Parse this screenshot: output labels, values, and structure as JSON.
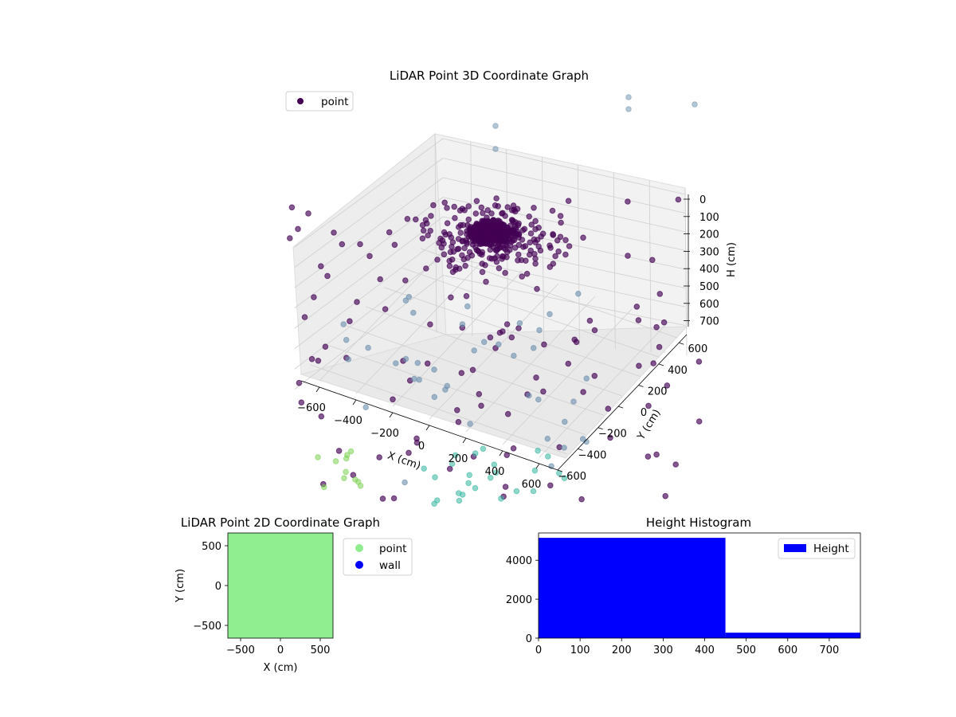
{
  "colors": {
    "axis_pane": "#f2f2f2",
    "grid": "#cfcfcf",
    "point_3d_dark": "#440154",
    "point_3d_mid": "#6a8fae",
    "point_3d_teal": "#35b7a0",
    "point_3d_green": "#7ad151",
    "scatter2d_point": "#90ee90",
    "scatter2d_wall": "#0000ff",
    "histogram": "#0000ff"
  },
  "chart_data": [
    {
      "id": "lidar-3d",
      "type": "scatter",
      "title": "LiDAR Point 3D Coordinate Graph",
      "xlabel": "X (cm)",
      "ylabel": "Y (cm)",
      "zlabel": "H (cm)",
      "xlim": [
        -700,
        700
      ],
      "ylim": [
        -700,
        700
      ],
      "zlim": [
        750,
        0
      ],
      "x_ticks": [
        "−600",
        "−400",
        "−200",
        "0",
        "200",
        "400",
        "600"
      ],
      "y_ticks": [
        "−600",
        "−400",
        "−200",
        "0",
        "200",
        "400",
        "600"
      ],
      "z_ticks": [
        "0",
        "100",
        "200",
        "300",
        "400",
        "500",
        "600",
        "700"
      ],
      "grid": true,
      "legend": {
        "placement": "upper-left",
        "entries": [
          "point"
        ]
      },
      "series": [
        {
          "name": "point",
          "cluster_center": [
            0,
            0,
            150
          ],
          "note_count_visible": "dense cluster near origin plus scattered points"
        }
      ]
    },
    {
      "id": "lidar-2d",
      "type": "scatter",
      "title": "LiDAR Point 2D Coordinate Graph",
      "xlabel": "X (cm)",
      "ylabel": "Y (cm)",
      "xlim": [
        -660,
        660
      ],
      "ylim": [
        -660,
        660
      ],
      "x_ticks": [
        -500,
        0,
        500
      ],
      "y_ticks": [
        -500,
        0,
        500
      ],
      "legend": {
        "placement": "outside-right",
        "entries": [
          "point",
          "wall"
        ]
      },
      "series": [
        {
          "name": "point",
          "fill": "full-area"
        },
        {
          "name": "wall",
          "fill": "none"
        }
      ]
    },
    {
      "id": "height-hist",
      "type": "bar",
      "title": "Height Histogram",
      "xlim": [
        0,
        775
      ],
      "ylim": [
        0,
        5400
      ],
      "x_ticks": [
        0,
        100,
        200,
        300,
        400,
        500,
        600,
        700
      ],
      "y_ticks": [
        0,
        2000,
        4000
      ],
      "legend": {
        "placement": "upper-right",
        "entries": [
          "Height"
        ]
      },
      "bins": [
        {
          "start": 0,
          "end": 450,
          "count": 5150
        },
        {
          "start": 450,
          "end": 775,
          "count": 280
        }
      ],
      "series": [
        {
          "name": "Height"
        }
      ]
    }
  ]
}
